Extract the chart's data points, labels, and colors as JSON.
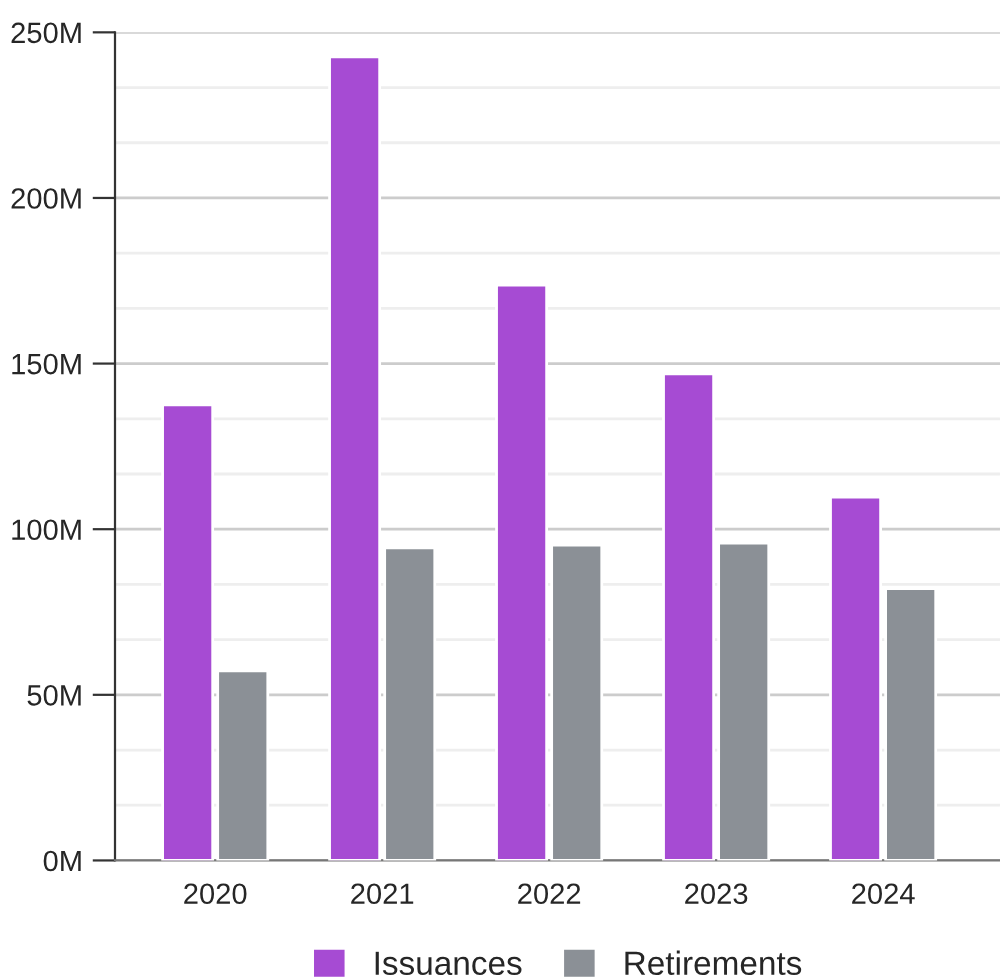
{
  "chart_data": {
    "type": "bar",
    "categories": [
      "2020",
      "2021",
      "2022",
      "2023",
      "2024"
    ],
    "series": [
      {
        "name": "Issuances",
        "color": "#a64bd3",
        "values": [
          137.5,
          242.6,
          173.7,
          146.9,
          109.7
        ]
      },
      {
        "name": "Retirements",
        "color": "#8b9096",
        "values": [
          57.2,
          94.4,
          95.2,
          95.8,
          82.1
        ]
      }
    ],
    "ylim": [
      0,
      250
    ],
    "yticks": [
      {
        "value": 0,
        "label": "0M"
      },
      {
        "value": 50,
        "label": "50M"
      },
      {
        "value": 100,
        "label": "100M"
      },
      {
        "value": 150,
        "label": "150M"
      },
      {
        "value": 200,
        "label": "200M"
      },
      {
        "value": 250,
        "label": "250M"
      }
    ],
    "grid": "y",
    "legend": "bottom"
  }
}
